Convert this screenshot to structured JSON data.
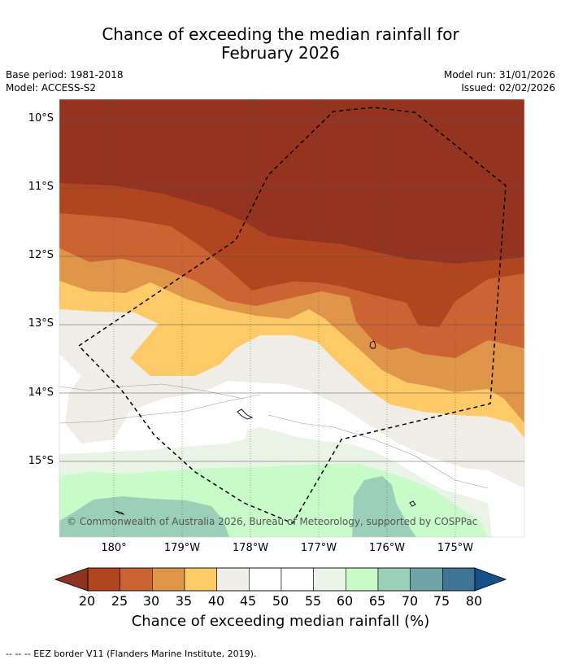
{
  "header": {
    "title_line1": "Chance of exceeding the median rainfall for",
    "title_line2": "February 2026",
    "base_period": "Base period: 1981-2018",
    "model": "Model: ACCESS-S2",
    "model_run": "Model run: 31/01/2026",
    "issued": "Issued: 02/02/2026"
  },
  "map": {
    "lat_labels": [
      "10°S",
      "11°S",
      "12°S",
      "13°S",
      "14°S",
      "15°S"
    ],
    "lon_labels": [
      "180°",
      "179°W",
      "178°W",
      "177°W",
      "176°W",
      "175°W"
    ],
    "copyright": "© Commonwealth of Australia 2026, Bureau of Meteorology, supported by COSPPac"
  },
  "colorbar": {
    "ticks": [
      "20",
      "25",
      "30",
      "35",
      "40",
      "45",
      "50",
      "55",
      "60",
      "65",
      "70",
      "75",
      "80"
    ],
    "colors": [
      "#b0451f",
      "#cb6332",
      "#e0964a",
      "#fdca67",
      "#f0ece6",
      "#ffffff",
      "#ffffff",
      "#e9f4e7",
      "#c8fbc8",
      "#9bcfb7",
      "#6ea3a8",
      "#3e7596"
    ],
    "under_color": "#8d3220",
    "over_color": "#174f88",
    "label": "Chance of exceeding median rainfall (%)"
  },
  "footnote": "--  --  -- EEZ border V11 (Flanders Marine Institute, 2019)."
}
